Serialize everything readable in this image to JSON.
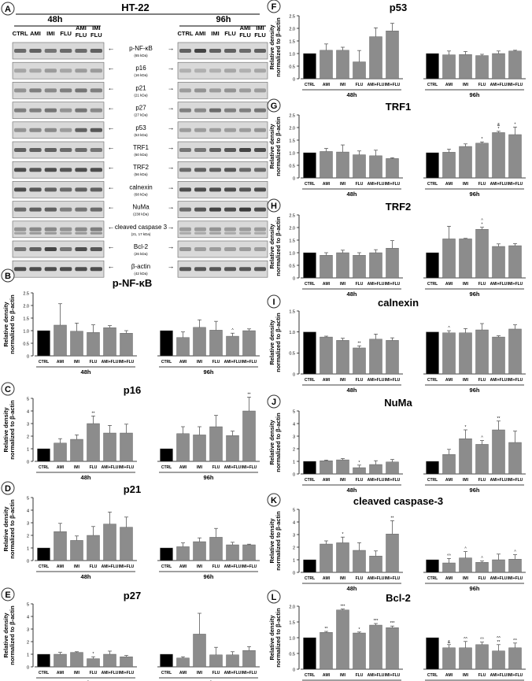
{
  "figure": {
    "blot_panel": {
      "letter": "A",
      "cell_line": "HT-22",
      "time_left": "48h",
      "time_right": "96h",
      "lanes_left": [
        "CTRL",
        "AMI",
        "IMI",
        "FLU",
        "AMI\nFLU",
        "IMI\nFLU"
      ],
      "lanes_right": [
        "CTRL",
        "AMI",
        "IMI",
        "FLU",
        "AMI\nFLU",
        "IMI\nFLU"
      ],
      "proteins": [
        {
          "name": "p-NF-κB",
          "kda": "(65 kDa)"
        },
        {
          "name": "p16",
          "kda": "(16 kDa)"
        },
        {
          "name": "p21",
          "kda": "(21 kDa)"
        },
        {
          "name": "p27",
          "kda": "(27 kDa)"
        },
        {
          "name": "p53",
          "kda": "(53 kDa)"
        },
        {
          "name": "TRF1",
          "kda": "(60 kDa)"
        },
        {
          "name": "TRF2",
          "kda": "(56 kDa)"
        },
        {
          "name": "calnexin",
          "kda": "(68 kDa)"
        },
        {
          "name": "NuMa",
          "kda": "(238 kDa)"
        },
        {
          "name": "cleaved caspase 3",
          "kda": "(21, 17 kDa)"
        },
        {
          "name": "Bcl-2",
          "kda": "(26 kDa)"
        },
        {
          "name": "β-actin",
          "kda": "(42 kDa)"
        }
      ]
    },
    "ylabel_line1": "Relative density",
    "ylabel_line2": "normalized to β-actin",
    "colors": {
      "ctrl_bar": "#000000",
      "treated_bar": "#8c8c8c"
    }
  },
  "chart_data": [
    {
      "panel": "B",
      "title": "p-NF-κB",
      "type": "bar",
      "ylim": [
        0,
        2.5
      ],
      "yticks": [
        0,
        0.5,
        1.0,
        1.5,
        2.0,
        2.5
      ],
      "categories": [
        "CTRL",
        "AMI",
        "IMI",
        "FLU",
        "AMI+FLU",
        "IMI+FLU"
      ],
      "groups": [
        "48h",
        "96h"
      ],
      "series": [
        {
          "group": "48h",
          "values": [
            1.0,
            1.22,
            0.98,
            0.93,
            1.12,
            0.9
          ],
          "errors": [
            0,
            0.85,
            0.32,
            0.3,
            0.08,
            0.1
          ],
          "sig": [
            "",
            "",
            "",
            "",
            "",
            ""
          ]
        },
        {
          "group": "96h",
          "values": [
            1.0,
            0.73,
            1.13,
            1.02,
            0.78,
            1.0
          ],
          "errors": [
            0,
            0.22,
            0.3,
            0.35,
            0.12,
            0.07
          ],
          "sig": [
            "",
            "",
            "",
            "",
            "^",
            ""
          ]
        }
      ]
    },
    {
      "panel": "C",
      "title": "p16",
      "type": "bar",
      "ylim": [
        0,
        5
      ],
      "yticks": [
        0,
        1,
        2,
        3,
        4,
        5
      ],
      "categories": [
        "CTRL",
        "AMI",
        "IMI",
        "FLU",
        "AMI+FLU",
        "IMI+FLU"
      ],
      "groups": [
        "48h",
        "96h"
      ],
      "series": [
        {
          "group": "48h",
          "values": [
            1.0,
            1.45,
            1.75,
            3.0,
            2.25,
            2.25
          ],
          "errors": [
            0,
            0.35,
            0.35,
            0.6,
            0.6,
            0.7
          ],
          "sig": [
            "",
            "",
            "",
            "**",
            "",
            ""
          ]
        },
        {
          "group": "96h",
          "values": [
            1.0,
            2.2,
            2.1,
            2.75,
            2.05,
            4.0
          ],
          "errors": [
            0,
            0.55,
            0.65,
            0.9,
            0.35,
            1.1
          ],
          "sig": [
            "",
            "",
            "",
            "",
            "",
            "**"
          ]
        }
      ]
    },
    {
      "panel": "D",
      "title": "p21",
      "type": "bar",
      "ylim": [
        0,
        5
      ],
      "yticks": [
        0,
        1,
        2,
        3,
        4,
        5
      ],
      "categories": [
        "CTRL",
        "AMI",
        "IMI",
        "FLU",
        "AMI+FLU",
        "IMI+FLU"
      ],
      "groups": [
        "48h",
        "96h"
      ],
      "series": [
        {
          "group": "48h",
          "values": [
            1.0,
            2.3,
            1.6,
            2.0,
            2.9,
            2.65
          ],
          "errors": [
            0,
            0.65,
            0.35,
            0.7,
            0.95,
            0.8
          ],
          "sig": [
            "",
            "",
            "",
            "",
            "",
            ""
          ]
        },
        {
          "group": "96h",
          "values": [
            1.0,
            1.1,
            1.5,
            1.85,
            1.25,
            1.25
          ],
          "errors": [
            0,
            0.3,
            0.3,
            0.7,
            0.2,
            0.05
          ],
          "sig": [
            "",
            "",
            "",
            "",
            "",
            ""
          ]
        }
      ]
    },
    {
      "panel": "E",
      "title": "p27",
      "type": "bar",
      "ylim": [
        0,
        5
      ],
      "yticks": [
        0,
        1,
        2,
        3,
        4,
        5
      ],
      "categories": [
        "CTRL",
        "AMI",
        "IMI",
        "FLU",
        "AMI+FLU",
        "IMI+FLU"
      ],
      "groups": [
        "48h",
        "96h"
      ],
      "series": [
        {
          "group": "48h",
          "values": [
            1.0,
            1.0,
            1.15,
            0.65,
            1.0,
            0.8
          ],
          "errors": [
            0,
            0.15,
            0.05,
            0.15,
            0.25,
            0.1
          ],
          "sig": [
            "",
            "",
            "",
            "*",
            "",
            ""
          ]
        },
        {
          "group": "96h",
          "values": [
            1.0,
            0.7,
            2.6,
            0.95,
            0.95,
            1.3
          ],
          "errors": [
            0,
            0.1,
            1.65,
            0.6,
            0.25,
            0.3
          ],
          "sig": [
            "",
            "",
            "",
            "",
            "",
            ""
          ]
        }
      ]
    },
    {
      "panel": "F",
      "title": "p53",
      "type": "bar",
      "ylim": [
        0,
        2.5
      ],
      "yticks": [
        0,
        0.5,
        1.0,
        1.5,
        2.0,
        2.5
      ],
      "categories": [
        "CTRL",
        "AMI",
        "IMI",
        "FLU",
        "AMI+FLU",
        "IMI+FLU"
      ],
      "groups": [
        "48h",
        "96h"
      ],
      "series": [
        {
          "group": "48h",
          "values": [
            1.0,
            1.13,
            1.13,
            0.67,
            1.67,
            1.9
          ],
          "errors": [
            0,
            0.25,
            0.12,
            0.45,
            0.35,
            0.3
          ],
          "sig": [
            "",
            "",
            "",
            "",
            "",
            ""
          ]
        },
        {
          "group": "96h",
          "values": [
            1.0,
            0.95,
            0.96,
            0.92,
            1.0,
            1.1
          ],
          "errors": [
            0,
            0.15,
            0.12,
            0.05,
            0.1,
            0.03
          ],
          "sig": [
            "",
            "",
            "",
            "",
            "",
            ""
          ]
        }
      ]
    },
    {
      "panel": "G",
      "title": "TRF1",
      "type": "bar",
      "ylim": [
        0,
        2.5
      ],
      "yticks": [
        0,
        0.5,
        1.0,
        1.5,
        2.0,
        2.5
      ],
      "categories": [
        "CTRL",
        "AMI",
        "IMI",
        "FLU",
        "AMI+FLU",
        "IMI+FLU"
      ],
      "groups": [
        "48h",
        "96h"
      ],
      "series": [
        {
          "group": "48h",
          "values": [
            1.0,
            1.05,
            1.03,
            0.92,
            0.88,
            0.77
          ],
          "errors": [
            0,
            0.12,
            0.28,
            0.15,
            0.22,
            0.03
          ],
          "sig": [
            "",
            "",
            "",
            "",
            "",
            ""
          ]
        },
        {
          "group": "96h",
          "values": [
            1.0,
            1.02,
            1.25,
            1.38,
            1.8,
            1.72
          ],
          "errors": [
            0,
            0.12,
            0.1,
            0.05,
            0.05,
            0.3
          ],
          "sig": [
            "",
            "",
            "",
            "*",
            "&\n*",
            "*"
          ]
        }
      ]
    },
    {
      "panel": "H",
      "title": "TRF2",
      "type": "bar",
      "ylim": [
        0,
        2.5
      ],
      "yticks": [
        0,
        0.5,
        1.0,
        1.5,
        2.0,
        2.5
      ],
      "categories": [
        "CTRL",
        "AMI",
        "IMI",
        "FLU",
        "AMI+FLU",
        "IMI+FLU"
      ],
      "groups": [
        "48h",
        "96h"
      ],
      "series": [
        {
          "group": "48h",
          "values": [
            1.0,
            0.9,
            1.0,
            0.9,
            1.0,
            1.18
          ],
          "errors": [
            0,
            0.1,
            0.1,
            0.1,
            0.12,
            0.3
          ],
          "sig": [
            "",
            "",
            "",
            "",
            "",
            ""
          ]
        },
        {
          "group": "96h",
          "values": [
            1.0,
            1.55,
            1.55,
            1.93,
            1.25,
            1.28
          ],
          "errors": [
            0,
            0.5,
            0.02,
            0.08,
            0.1,
            0.08
          ],
          "sig": [
            "",
            "",
            "",
            "^\n*",
            "",
            ""
          ]
        }
      ]
    },
    {
      "panel": "I",
      "title": "calnexin",
      "type": "bar",
      "ylim": [
        0,
        1.5
      ],
      "yticks": [
        0,
        0.5,
        1.0,
        1.5
      ],
      "categories": [
        "CTRL",
        "AMI",
        "IMI",
        "FLU",
        "AMI+FLU",
        "IMI+FLU"
      ],
      "groups": [
        "48h",
        "96h"
      ],
      "series": [
        {
          "group": "48h",
          "values": [
            1.0,
            0.88,
            0.8,
            0.62,
            0.83,
            0.8
          ],
          "errors": [
            0,
            0.02,
            0.05,
            0.05,
            0.12,
            0.06
          ],
          "sig": [
            "",
            "",
            "",
            "**",
            "",
            ""
          ]
        },
        {
          "group": "96h",
          "values": [
            1.0,
            0.98,
            0.98,
            1.05,
            0.88,
            1.07
          ],
          "errors": [
            0,
            0.05,
            0.1,
            0.15,
            0.03,
            0.1
          ],
          "sig": [
            "",
            "^",
            "",
            "",
            "",
            ""
          ]
        }
      ]
    },
    {
      "panel": "J",
      "title": "NuMa",
      "type": "bar",
      "ylim": [
        0,
        5
      ],
      "yticks": [
        0,
        1,
        2,
        3,
        4,
        5
      ],
      "categories": [
        "CTRL",
        "AMI",
        "IMI",
        "FLU",
        "AMI+FLU",
        "IMI+FLU"
      ],
      "groups": [
        "48h",
        "96h"
      ],
      "series": [
        {
          "group": "48h",
          "values": [
            1.0,
            1.05,
            1.12,
            0.5,
            0.75,
            0.95
          ],
          "errors": [
            0,
            0.05,
            0.1,
            0.2,
            0.3,
            0.2
          ],
          "sig": [
            "",
            "",
            "",
            "*",
            "",
            ""
          ]
        },
        {
          "group": "96h",
          "values": [
            1.0,
            1.55,
            2.8,
            2.35,
            3.5,
            2.5
          ],
          "errors": [
            0,
            0.4,
            0.7,
            0.3,
            0.7,
            0.9
          ],
          "sig": [
            "",
            "",
            "*",
            "^",
            "**",
            ""
          ]
        }
      ]
    },
    {
      "panel": "K",
      "title": "cleaved caspase-3",
      "type": "bar",
      "ylim": [
        0,
        5
      ],
      "yticks": [
        0,
        1,
        2,
        3,
        4,
        5
      ],
      "categories": [
        "CTRL",
        "AMI",
        "IMI",
        "FLU",
        "AMI+FLU",
        "IMI+FLU"
      ],
      "groups": [
        "48h",
        "96h"
      ],
      "series": [
        {
          "group": "48h",
          "values": [
            1.0,
            2.25,
            2.35,
            1.75,
            1.3,
            3.05
          ],
          "errors": [
            0,
            0.25,
            0.45,
            0.6,
            0.4,
            1.05
          ],
          "sig": [
            "",
            "",
            "*",
            "",
            "",
            "**"
          ]
        },
        {
          "group": "96h",
          "values": [
            1.0,
            0.75,
            1.15,
            0.8,
            1.0,
            1.05
          ],
          "errors": [
            0,
            0.35,
            0.5,
            0.1,
            0.45,
            0.35
          ],
          "sig": [
            "",
            "^^",
            "^",
            "^",
            "",
            "^"
          ]
        }
      ]
    },
    {
      "panel": "L",
      "title": "Bcl-2",
      "type": "bar",
      "ylim": [
        0,
        2.0
      ],
      "yticks": [
        0,
        0.5,
        1.0,
        1.5,
        2.0
      ],
      "categories": [
        "CTRL",
        "AMI",
        "IMI",
        "FLU",
        "AMI+FLU",
        "IMI+FLU"
      ],
      "groups": [
        "48h",
        "96h"
      ],
      "series": [
        {
          "group": "48h",
          "values": [
            1.0,
            1.17,
            1.88,
            1.15,
            1.4,
            1.32
          ],
          "errors": [
            0,
            0.03,
            0.03,
            0.03,
            0.05,
            0.05
          ],
          "sig": [
            "",
            "**",
            "***",
            "*",
            "***",
            "***"
          ]
        },
        {
          "group": "96h",
          "values": [
            1.0,
            0.68,
            0.68,
            0.78,
            0.58,
            0.68
          ],
          "errors": [
            0,
            0.1,
            0.2,
            0.08,
            0.2,
            0.15
          ],
          "sig": [
            "",
            "&",
            "^^",
            "^^",
            "^^\n**",
            "^^"
          ]
        }
      ]
    }
  ]
}
